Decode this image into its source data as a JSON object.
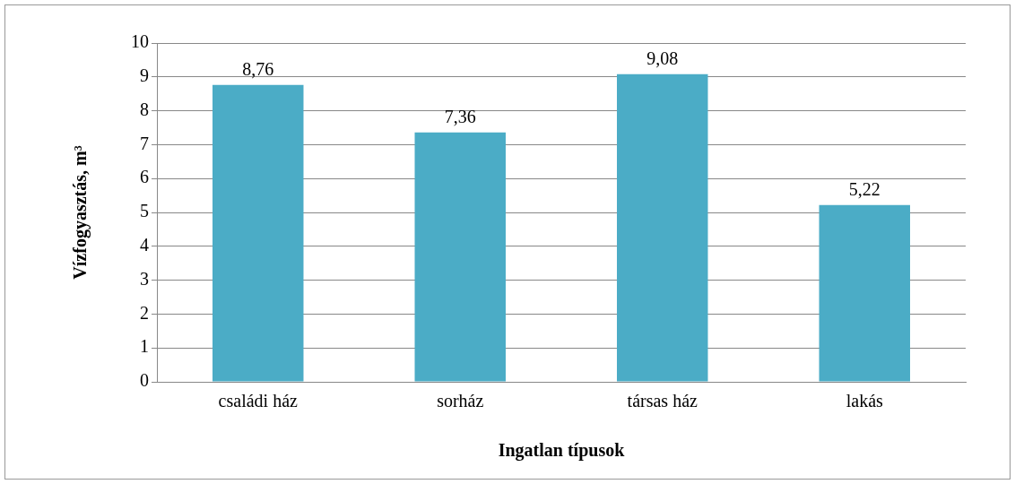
{
  "chart_data": {
    "type": "bar",
    "xlabel": "Ingatlan típusok",
    "ylabel": "Vízfogyasztás, m³",
    "categories": [
      "családi ház",
      "sorház",
      "társas ház",
      "lakás"
    ],
    "values": [
      8.76,
      7.36,
      9.08,
      5.22
    ],
    "value_labels": [
      "8,76",
      "7,36",
      "9,08",
      "5,22"
    ],
    "color": "#4bacc6",
    "ylim": [
      0,
      10
    ],
    "yticks": [
      0,
      1,
      2,
      3,
      4,
      5,
      6,
      7,
      8,
      9,
      10
    ],
    "grid": "y",
    "legend": false
  }
}
